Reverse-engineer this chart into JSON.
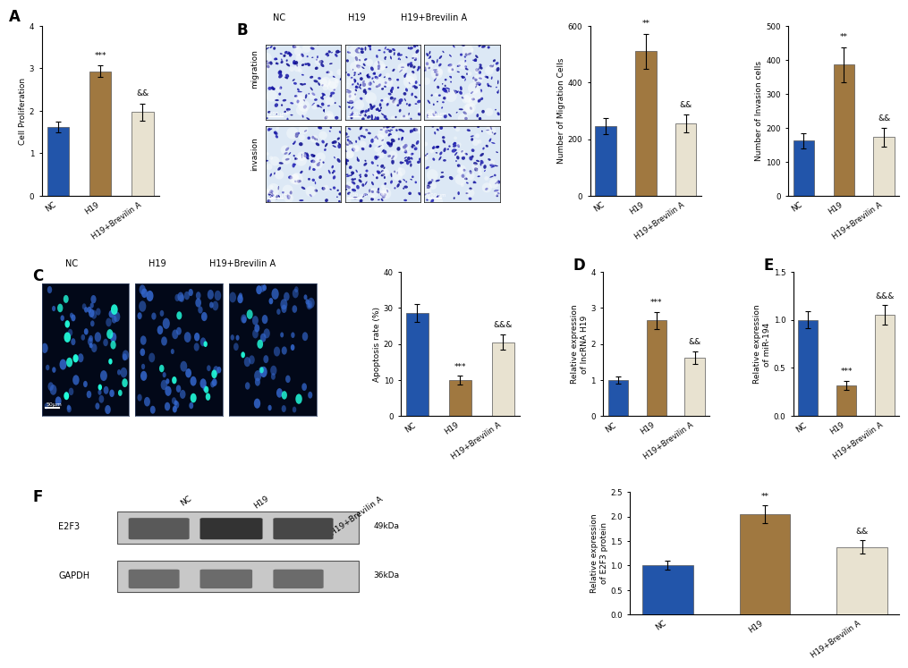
{
  "panel_A": {
    "categories": [
      "NC",
      "H19",
      "H19+Brevilin A"
    ],
    "values": [
      1.62,
      2.93,
      1.97
    ],
    "errors": [
      0.13,
      0.14,
      0.2
    ],
    "colors": [
      "#2255aa",
      "#a07840",
      "#e8e2d0"
    ],
    "ylabel": "Cell Proliferation",
    "ylim": [
      0,
      4
    ],
    "yticks": [
      0,
      1,
      2,
      3,
      4
    ],
    "sig_labels": [
      "",
      "***",
      "&&"
    ]
  },
  "panel_B_migration": {
    "categories": [
      "NC",
      "H19",
      "H19+Brevilin A"
    ],
    "values": [
      245,
      510,
      255
    ],
    "errors": [
      28,
      62,
      32
    ],
    "colors": [
      "#2255aa",
      "#a07840",
      "#e8e2d0"
    ],
    "ylabel": "Number of Migration Cells",
    "ylim": [
      0,
      600
    ],
    "yticks": [
      0,
      200,
      400,
      600
    ],
    "sig_labels": [
      "",
      "**",
      "&&"
    ]
  },
  "panel_B_invasion": {
    "categories": [
      "NC",
      "H19",
      "H19+Brevilin A"
    ],
    "values": [
      162,
      385,
      172
    ],
    "errors": [
      22,
      52,
      28
    ],
    "colors": [
      "#2255aa",
      "#a07840",
      "#e8e2d0"
    ],
    "ylabel": "Number of Invasion cells",
    "ylim": [
      0,
      500
    ],
    "yticks": [
      0,
      100,
      200,
      300,
      400,
      500
    ],
    "sig_labels": [
      "",
      "**",
      "&&"
    ]
  },
  "panel_C": {
    "categories": [
      "NC",
      "H19",
      "H19+Brevilin A"
    ],
    "values": [
      28.5,
      10.0,
      20.5
    ],
    "errors": [
      2.5,
      1.2,
      2.2
    ],
    "colors": [
      "#2255aa",
      "#a07840",
      "#e8e2d0"
    ],
    "ylabel": "Apoptosis rate (%)",
    "ylim": [
      0,
      40
    ],
    "yticks": [
      0,
      10,
      20,
      30,
      40
    ],
    "sig_labels": [
      "",
      "***",
      "&&&"
    ]
  },
  "panel_D": {
    "categories": [
      "NC",
      "H19",
      "H19+Brevilin A"
    ],
    "values": [
      1.0,
      2.65,
      1.62
    ],
    "errors": [
      0.09,
      0.24,
      0.18
    ],
    "colors": [
      "#2255aa",
      "#a07840",
      "#e8e2d0"
    ],
    "ylabel": "Relative expression\nof lncRNA H19",
    "ylim": [
      0,
      4
    ],
    "yticks": [
      0,
      1,
      2,
      3,
      4
    ],
    "sig_labels": [
      "",
      "***",
      "&&"
    ]
  },
  "panel_E": {
    "categories": [
      "NC",
      "H19",
      "H19+Brevilin A"
    ],
    "values": [
      1.0,
      0.32,
      1.05
    ],
    "errors": [
      0.09,
      0.05,
      0.1
    ],
    "colors": [
      "#2255aa",
      "#a07840",
      "#e8e2d0"
    ],
    "ylabel": "Relative expression\nof miR-194",
    "ylim": [
      0,
      1.5
    ],
    "yticks": [
      0.0,
      0.5,
      1.0,
      1.5
    ],
    "sig_labels": [
      "",
      "***",
      "&&&"
    ]
  },
  "panel_F": {
    "categories": [
      "NC",
      "H19",
      "H19+Brevilin A"
    ],
    "values": [
      1.0,
      2.05,
      1.38
    ],
    "errors": [
      0.09,
      0.18,
      0.14
    ],
    "colors": [
      "#2255aa",
      "#a07840",
      "#e8e2d0"
    ],
    "ylabel": "Relative expression\nof E2F3 protein",
    "ylim": [
      0,
      2.5
    ],
    "yticks": [
      0.0,
      0.5,
      1.0,
      1.5,
      2.0,
      2.5
    ],
    "sig_labels": [
      "",
      "**",
      "&&"
    ]
  },
  "bar_width": 0.52,
  "background_color": "#ffffff",
  "font_size_label": 6.5,
  "font_size_tick": 6.2,
  "font_size_sig": 6.5,
  "panel_label_size": 12
}
